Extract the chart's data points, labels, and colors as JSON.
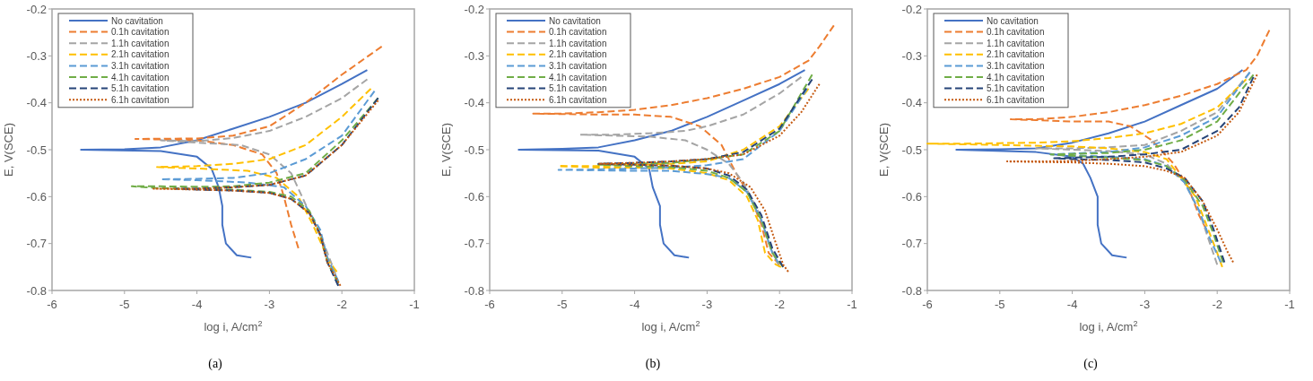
{
  "chart_data": [
    {
      "type": "line",
      "xlabel": "log i, A/cm$^{2}$",
      "ylabel": "E, V(SCE)",
      "xlim": [
        -6,
        -1
      ],
      "ylim": [
        -0.8,
        -0.2
      ],
      "xticks": [
        -6,
        -5,
        -4,
        -3,
        -2,
        -1
      ],
      "yticks": [
        -0.8,
        -0.7,
        -0.6,
        -0.5,
        -0.4,
        -0.3,
        -0.2
      ],
      "grid": false,
      "legend": "top left",
      "annotations": [
        "(a)"
      ],
      "series": [
        {
          "name": "No cavitation",
          "color": "#4472c4",
          "line_style": "solid",
          "x": [
            -3.25,
            -3.45,
            -3.6,
            -3.65,
            -3.65,
            -3.7,
            -3.8,
            -4.0,
            -4.5,
            -5.6,
            -5.0,
            -4.5,
            -4.0,
            -3.5,
            -3.0,
            -2.5,
            -2.0,
            -1.65
          ],
          "values": [
            -0.73,
            -0.725,
            -0.7,
            -0.66,
            -0.62,
            -0.58,
            -0.54,
            -0.515,
            -0.503,
            -0.5,
            -0.499,
            -0.495,
            -0.48,
            -0.455,
            -0.43,
            -0.4,
            -0.36,
            -0.33
          ]
        },
        {
          "name": "0.1h cavitation",
          "color": "#ed7d31",
          "line_style": "dashed",
          "x": [
            -2.6,
            -2.7,
            -2.8,
            -2.9,
            -3.1,
            -3.5,
            -4.0,
            -4.85,
            -4.0,
            -3.5,
            -3.0,
            -2.5,
            -2.0,
            -1.45
          ],
          "values": [
            -0.71,
            -0.66,
            -0.6,
            -0.55,
            -0.51,
            -0.49,
            -0.48,
            -0.477,
            -0.476,
            -0.47,
            -0.45,
            -0.4,
            -0.34,
            -0.28
          ]
        },
        {
          "name": "1.1h cavitation",
          "color": "#a5a5a5",
          "line_style": "dashed",
          "x": [
            -2.05,
            -2.1,
            -2.25,
            -2.4,
            -2.55,
            -2.7,
            -3.0,
            -3.4,
            -4.0,
            -4.5,
            -4.0,
            -3.5,
            -3.0,
            -2.5,
            -2.0,
            -1.65
          ],
          "values": [
            -0.79,
            -0.76,
            -0.7,
            -0.65,
            -0.6,
            -0.55,
            -0.51,
            -0.49,
            -0.485,
            -0.48,
            -0.482,
            -0.475,
            -0.46,
            -0.43,
            -0.39,
            -0.35
          ]
        },
        {
          "name": "2.1h cavitation",
          "color": "#ffc000",
          "line_style": "dashed",
          "x": [
            -2.07,
            -2.17,
            -2.4,
            -2.6,
            -2.9,
            -3.3,
            -4.0,
            -4.55,
            -4.0,
            -3.5,
            -3.0,
            -2.5,
            -2.0,
            -1.6
          ],
          "values": [
            -0.76,
            -0.74,
            -0.66,
            -0.6,
            -0.56,
            -0.545,
            -0.54,
            -0.537,
            -0.535,
            -0.53,
            -0.52,
            -0.49,
            -0.43,
            -0.37
          ]
        },
        {
          "name": "3.1h cavitation",
          "color": "#5b9bd5",
          "line_style": "dashed",
          "x": [
            -2.05,
            -2.2,
            -2.3,
            -2.5,
            -2.8,
            -3.3,
            -4.0,
            -4.5,
            -4.0,
            -3.5,
            -3.0,
            -2.5,
            -2.0,
            -1.55
          ],
          "values": [
            -0.78,
            -0.73,
            -0.67,
            -0.62,
            -0.58,
            -0.57,
            -0.565,
            -0.563,
            -0.562,
            -0.56,
            -0.55,
            -0.52,
            -0.47,
            -0.375
          ]
        },
        {
          "name": "4.1h cavitation",
          "color": "#70ad47",
          "line_style": "dashed",
          "x": [
            -2.05,
            -2.2,
            -2.3,
            -2.45,
            -2.7,
            -3.0,
            -3.5,
            -4.5,
            -4.9,
            -4.5,
            -4.0,
            -3.5,
            -3.0,
            -2.5,
            -2.0,
            -1.5
          ],
          "values": [
            -0.785,
            -0.74,
            -0.68,
            -0.63,
            -0.6,
            -0.59,
            -0.585,
            -0.582,
            -0.578,
            -0.578,
            -0.579,
            -0.578,
            -0.57,
            -0.55,
            -0.48,
            -0.39
          ]
        },
        {
          "name": "5.1h cavitation",
          "color": "#264478",
          "line_style": "dashed",
          "x": [
            -2.05,
            -2.2,
            -2.3,
            -2.45,
            -2.7,
            -3.0,
            -3.5,
            -4.0,
            -4.3,
            -4.0,
            -3.5,
            -3.0,
            -2.5,
            -2.0,
            -1.5
          ],
          "values": [
            -0.79,
            -0.74,
            -0.68,
            -0.635,
            -0.605,
            -0.592,
            -0.587,
            -0.585,
            -0.583,
            -0.583,
            -0.58,
            -0.575,
            -0.555,
            -0.49,
            -0.39
          ]
        },
        {
          "name": "6.1h cavitation",
          "color": "#c55a11",
          "line_style": "dotted",
          "x": [
            -2.02,
            -2.2,
            -2.3,
            -2.45,
            -2.7,
            -3.0,
            -3.5,
            -4.0,
            -4.6,
            -4.0,
            -3.5,
            -3.0,
            -2.5,
            -2.0,
            -1.5
          ],
          "values": [
            -0.79,
            -0.74,
            -0.68,
            -0.635,
            -0.605,
            -0.592,
            -0.587,
            -0.585,
            -0.583,
            -0.583,
            -0.58,
            -0.575,
            -0.555,
            -0.49,
            -0.395
          ]
        }
      ]
    },
    {
      "type": "line",
      "xlabel": "log i, A/cm$^{2}$",
      "ylabel": "E, V(SCE)",
      "xlim": [
        -6,
        -1
      ],
      "ylim": [
        -0.8,
        -0.2
      ],
      "xticks": [
        -6,
        -5,
        -4,
        -3,
        -2,
        -1
      ],
      "yticks": [
        -0.8,
        -0.7,
        -0.6,
        -0.5,
        -0.4,
        -0.3,
        -0.2
      ],
      "grid": false,
      "legend": "top left",
      "annotations": [
        "(b)"
      ],
      "series": [
        {
          "name": "No cavitation",
          "color": "#4472c4",
          "line_style": "solid",
          "x": [
            -3.25,
            -3.45,
            -3.6,
            -3.65,
            -3.65,
            -3.75,
            -3.8,
            -4.0,
            -4.5,
            -5.6,
            -5.0,
            -4.5,
            -4.0,
            -3.5,
            -3.0,
            -2.5,
            -2.0,
            -1.65
          ],
          "values": [
            -0.73,
            -0.725,
            -0.7,
            -0.66,
            -0.62,
            -0.58,
            -0.54,
            -0.515,
            -0.502,
            -0.5,
            -0.498,
            -0.495,
            -0.48,
            -0.46,
            -0.43,
            -0.395,
            -0.36,
            -0.33
          ]
        },
        {
          "name": "0.1h cavitation",
          "color": "#ed7d31",
          "line_style": "dashed",
          "x": [
            -2.0,
            -2.15,
            -2.25,
            -2.4,
            -2.6,
            -2.8,
            -3.1,
            -3.5,
            -4.0,
            -4.5,
            -5.0,
            -5.4,
            -5.0,
            -4.5,
            -4.0,
            -3.5,
            -3.0,
            -2.5,
            -2.0,
            -1.6,
            -1.45,
            -1.25
          ],
          "values": [
            -0.745,
            -0.72,
            -0.66,
            -0.6,
            -0.55,
            -0.49,
            -0.45,
            -0.43,
            -0.425,
            -0.425,
            -0.424,
            -0.423,
            -0.423,
            -0.42,
            -0.415,
            -0.405,
            -0.39,
            -0.37,
            -0.345,
            -0.31,
            -0.28,
            -0.235
          ]
        },
        {
          "name": "1.1h cavitation",
          "color": "#a5a5a5",
          "line_style": "dashed",
          "x": [
            -2.0,
            -2.15,
            -2.3,
            -2.5,
            -2.7,
            -3.0,
            -3.3,
            -3.8,
            -4.3,
            -4.75,
            -4.3,
            -3.8,
            -3.3,
            -3.0,
            -2.5,
            -2.0,
            -1.7
          ],
          "values": [
            -0.75,
            -0.7,
            -0.63,
            -0.57,
            -0.53,
            -0.5,
            -0.48,
            -0.472,
            -0.47,
            -0.468,
            -0.468,
            -0.465,
            -0.46,
            -0.45,
            -0.425,
            -0.38,
            -0.345
          ]
        },
        {
          "name": "2.1h cavitation",
          "color": "#ffc000",
          "line_style": "dashed",
          "x": [
            -1.98,
            -2.05,
            -2.2,
            -2.3,
            -2.45,
            -2.7,
            -3.0,
            -3.5,
            -4.0,
            -4.5,
            -5.05,
            -4.5,
            -4.0,
            -3.5,
            -3.0,
            -2.5,
            -2.0,
            -1.6
          ],
          "values": [
            -0.75,
            -0.745,
            -0.72,
            -0.65,
            -0.6,
            -0.565,
            -0.55,
            -0.54,
            -0.538,
            -0.538,
            -0.535,
            -0.535,
            -0.532,
            -0.53,
            -0.525,
            -0.5,
            -0.45,
            -0.37
          ]
        },
        {
          "name": "3.1h cavitation",
          "color": "#5b9bd5",
          "line_style": "dashed",
          "x": [
            -2.02,
            -2.1,
            -2.25,
            -2.45,
            -2.7,
            -3.0,
            -3.5,
            -4.0,
            -4.5,
            -5.05,
            -4.5,
            -4.0,
            -3.5,
            -3.0,
            -2.5,
            -2.0,
            -1.62
          ],
          "values": [
            -0.74,
            -0.72,
            -0.65,
            -0.59,
            -0.56,
            -0.552,
            -0.545,
            -0.545,
            -0.544,
            -0.543,
            -0.542,
            -0.54,
            -0.538,
            -0.533,
            -0.52,
            -0.46,
            -0.37
          ]
        },
        {
          "name": "4.1h cavitation",
          "color": "#70ad47",
          "line_style": "dashed",
          "x": [
            -1.95,
            -2.1,
            -2.25,
            -2.45,
            -2.7,
            -3.0,
            -3.5,
            -4.0,
            -4.5,
            -4.0,
            -3.5,
            -3.0,
            -2.5,
            -2.0,
            -1.55
          ],
          "values": [
            -0.75,
            -0.72,
            -0.65,
            -0.59,
            -0.56,
            -0.545,
            -0.537,
            -0.535,
            -0.532,
            -0.53,
            -0.528,
            -0.52,
            -0.51,
            -0.46,
            -0.34
          ]
        },
        {
          "name": "5.1h cavitation",
          "color": "#264478",
          "line_style": "dashed",
          "x": [
            -1.95,
            -2.1,
            -2.25,
            -2.45,
            -2.7,
            -3.0,
            -3.5,
            -4.0,
            -4.5,
            -4.0,
            -3.5,
            -3.0,
            -2.5,
            -2.0,
            -1.55
          ],
          "values": [
            -0.75,
            -0.71,
            -0.64,
            -0.585,
            -0.555,
            -0.54,
            -0.534,
            -0.532,
            -0.53,
            -0.528,
            -0.525,
            -0.52,
            -0.505,
            -0.455,
            -0.35
          ]
        },
        {
          "name": "6.1h cavitation",
          "color": "#c55a11",
          "line_style": "dotted",
          "x": [
            -1.88,
            -1.95,
            -2.05,
            -2.2,
            -2.4,
            -2.7,
            -3.0,
            -3.5,
            -4.0,
            -4.5,
            -4.0,
            -3.5,
            -3.0,
            -2.5,
            -2.0,
            -1.7,
            -1.45
          ],
          "values": [
            -0.76,
            -0.745,
            -0.7,
            -0.63,
            -0.58,
            -0.55,
            -0.54,
            -0.534,
            -0.532,
            -0.53,
            -0.528,
            -0.525,
            -0.52,
            -0.51,
            -0.47,
            -0.42,
            -0.36
          ]
        }
      ]
    },
    {
      "type": "line",
      "xlabel": "log i, A/cm$^{2}$",
      "ylabel": "E, V(SCE)",
      "xlim": [
        -6,
        -1
      ],
      "ylim": [
        -0.8,
        -0.2
      ],
      "xticks": [
        -6,
        -5,
        -4,
        -3,
        -2,
        -1
      ],
      "yticks": [
        -0.8,
        -0.7,
        -0.6,
        -0.5,
        -0.4,
        -0.3,
        -0.2
      ],
      "grid": false,
      "legend": "top left",
      "annotations": [
        "(c)"
      ],
      "series": [
        {
          "name": "No cavitation",
          "color": "#4472c4",
          "line_style": "solid",
          "x": [
            -3.25,
            -3.45,
            -3.6,
            -3.65,
            -3.65,
            -3.75,
            -3.85,
            -4.0,
            -4.5,
            -5.6,
            -5.0,
            -4.5,
            -4.0,
            -3.5,
            -3.0,
            -2.5,
            -2.0,
            -1.65
          ],
          "values": [
            -0.73,
            -0.725,
            -0.7,
            -0.66,
            -0.6,
            -0.56,
            -0.53,
            -0.515,
            -0.505,
            -0.5,
            -0.499,
            -0.497,
            -0.485,
            -0.465,
            -0.44,
            -0.405,
            -0.37,
            -0.33
          ]
        },
        {
          "name": "0.1h cavitation",
          "color": "#ed7d31",
          "line_style": "dashed",
          "x": [
            -2.15,
            -2.25,
            -2.4,
            -2.6,
            -2.9,
            -3.2,
            -3.5,
            -4.0,
            -4.5,
            -4.85,
            -4.5,
            -4.0,
            -3.5,
            -3.0,
            -2.5,
            -2.0,
            -1.6,
            -1.45,
            -1.28
          ],
          "values": [
            -0.67,
            -0.64,
            -0.58,
            -0.53,
            -0.48,
            -0.45,
            -0.44,
            -0.44,
            -0.437,
            -0.435,
            -0.435,
            -0.43,
            -0.42,
            -0.405,
            -0.385,
            -0.36,
            -0.33,
            -0.3,
            -0.245
          ]
        },
        {
          "name": "1.1h cavitation",
          "color": "#a5a5a5",
          "line_style": "dashed",
          "x": [
            -2.0,
            -2.1,
            -2.25,
            -2.45,
            -2.7,
            -3.0,
            -3.5,
            -4.0,
            -4.5,
            -4.0,
            -3.5,
            -3.0,
            -2.5,
            -2.0,
            -1.55
          ],
          "values": [
            -0.745,
            -0.7,
            -0.63,
            -0.57,
            -0.53,
            -0.51,
            -0.503,
            -0.5,
            -0.497,
            -0.497,
            -0.495,
            -0.49,
            -0.46,
            -0.42,
            -0.335
          ]
        },
        {
          "name": "2.1h cavitation",
          "color": "#ffc000",
          "line_style": "dashed",
          "x": [
            -1.93,
            -2.0,
            -2.1,
            -2.3,
            -2.5,
            -2.7,
            -3.0,
            -3.5,
            -4.0,
            -5.0,
            -6.0,
            -5.5,
            -5.0,
            -4.5,
            -4.0,
            -3.5,
            -3.0,
            -2.5,
            -2.0,
            -1.6
          ],
          "values": [
            -0.75,
            -0.72,
            -0.68,
            -0.6,
            -0.56,
            -0.52,
            -0.505,
            -0.497,
            -0.493,
            -0.49,
            -0.487,
            -0.487,
            -0.486,
            -0.485,
            -0.482,
            -0.475,
            -0.465,
            -0.445,
            -0.41,
            -0.35
          ]
        },
        {
          "name": "3.1h cavitation",
          "color": "#5b9bd5",
          "line_style": "dashed",
          "x": [
            -1.95,
            -2.1,
            -2.25,
            -2.45,
            -2.7,
            -3.0,
            -3.5,
            -4.0,
            -4.3,
            -4.0,
            -3.5,
            -3.0,
            -2.5,
            -2.0,
            -1.55
          ],
          "values": [
            -0.74,
            -0.69,
            -0.63,
            -0.57,
            -0.535,
            -0.52,
            -0.515,
            -0.512,
            -0.51,
            -0.508,
            -0.505,
            -0.495,
            -0.47,
            -0.43,
            -0.335
          ]
        },
        {
          "name": "4.1h cavitation",
          "color": "#70ad47",
          "line_style": "dashed",
          "x": [
            -1.92,
            -2.05,
            -2.2,
            -2.45,
            -2.7,
            -3.0,
            -3.5,
            -4.0,
            -4.3,
            -4.0,
            -3.5,
            -3.0,
            -2.5,
            -2.0,
            -1.5
          ],
          "values": [
            -0.74,
            -0.68,
            -0.62,
            -0.565,
            -0.535,
            -0.522,
            -0.517,
            -0.513,
            -0.51,
            -0.509,
            -0.507,
            -0.5,
            -0.48,
            -0.44,
            -0.34
          ]
        },
        {
          "name": "5.1h cavitation",
          "color": "#264478",
          "line_style": "dashed",
          "x": [
            -1.9,
            -2.05,
            -2.2,
            -2.45,
            -2.7,
            -3.0,
            -3.5,
            -4.0,
            -4.25,
            -4.0,
            -3.5,
            -3.0,
            -2.5,
            -2.0,
            -1.7,
            -1.5
          ],
          "values": [
            -0.74,
            -0.67,
            -0.61,
            -0.56,
            -0.54,
            -0.527,
            -0.522,
            -0.52,
            -0.518,
            -0.517,
            -0.515,
            -0.51,
            -0.5,
            -0.46,
            -0.41,
            -0.345
          ]
        },
        {
          "name": "6.1h cavitation",
          "color": "#c55a11",
          "line_style": "dotted",
          "x": [
            -1.78,
            -1.85,
            -2.0,
            -2.2,
            -2.45,
            -2.7,
            -3.0,
            -3.5,
            -4.0,
            -4.5,
            -4.9,
            -4.5,
            -4.0,
            -3.5,
            -3.0,
            -2.5,
            -2.0,
            -1.7,
            -1.45
          ],
          "values": [
            -0.74,
            -0.72,
            -0.67,
            -0.61,
            -0.56,
            -0.545,
            -0.535,
            -0.53,
            -0.527,
            -0.526,
            -0.525,
            -0.525,
            -0.524,
            -0.52,
            -0.515,
            -0.505,
            -0.47,
            -0.42,
            -0.34
          ]
        }
      ]
    }
  ]
}
